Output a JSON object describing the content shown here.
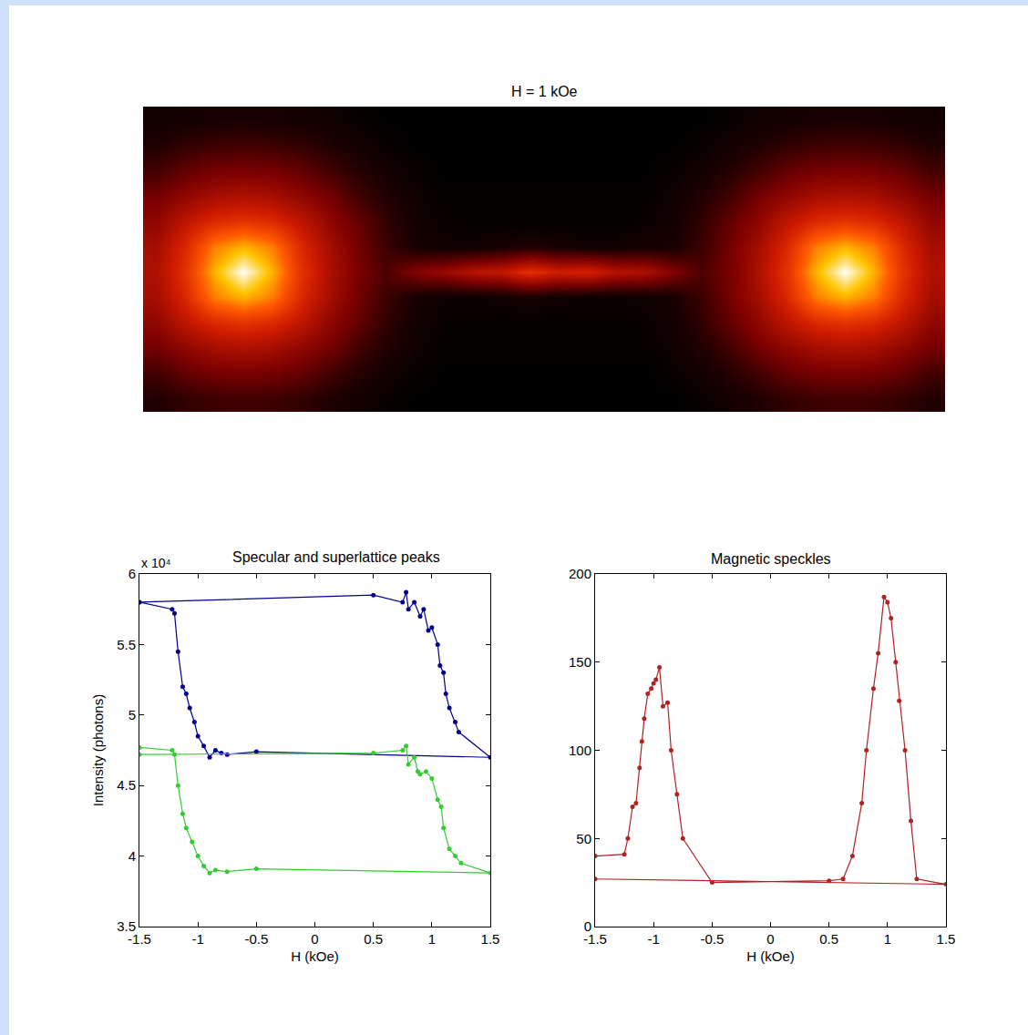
{
  "chart_data": [
    {
      "type": "heatmap",
      "title": "H = 1 kOe",
      "tick_labels": false,
      "z": [
        [
          8,
          9,
          10,
          10,
          10,
          9,
          8,
          6,
          4,
          4,
          4,
          4,
          4,
          4,
          4,
          4,
          4,
          4,
          4,
          4,
          6,
          8,
          9,
          10,
          10,
          10,
          9,
          8
        ],
        [
          12,
          15,
          17,
          18,
          17,
          15,
          12,
          9,
          6,
          4,
          4,
          4,
          4,
          4,
          4,
          4,
          4,
          4,
          4,
          6,
          9,
          12,
          15,
          17,
          18,
          17,
          15,
          12
        ],
        [
          18,
          24,
          27,
          28,
          27,
          24,
          18,
          13,
          9,
          6,
          4,
          4,
          4,
          4,
          4,
          4,
          4,
          4,
          6,
          9,
          13,
          18,
          24,
          27,
          28,
          27,
          24,
          18
        ],
        [
          27,
          33,
          38,
          40,
          38,
          33,
          27,
          18,
          12,
          8,
          5,
          5,
          5,
          5,
          5,
          5,
          5,
          5,
          8,
          12,
          18,
          27,
          33,
          38,
          40,
          38,
          33,
          27
        ],
        [
          33,
          44,
          52,
          55,
          52,
          44,
          33,
          24,
          15,
          9,
          6,
          5,
          5,
          5,
          5,
          5,
          5,
          6,
          9,
          15,
          24,
          33,
          44,
          52,
          55,
          52,
          44,
          33
        ],
        [
          38,
          52,
          72,
          80,
          72,
          52,
          38,
          27,
          17,
          10,
          8,
          8,
          10,
          12,
          10,
          8,
          8,
          10,
          10,
          17,
          27,
          38,
          52,
          72,
          80,
          72,
          52,
          38
        ],
        [
          40,
          55,
          80,
          100,
          80,
          55,
          40,
          28,
          20,
          30,
          35,
          42,
          45,
          55,
          48,
          50,
          42,
          40,
          30,
          20,
          28,
          40,
          55,
          80,
          100,
          80,
          55,
          40
        ],
        [
          38,
          52,
          72,
          80,
          72,
          52,
          38,
          27,
          17,
          10,
          7,
          7,
          8,
          10,
          8,
          7,
          7,
          8,
          10,
          17,
          27,
          38,
          52,
          72,
          80,
          72,
          52,
          38
        ],
        [
          33,
          44,
          52,
          55,
          52,
          44,
          33,
          24,
          15,
          9,
          6,
          5,
          5,
          5,
          5,
          5,
          5,
          6,
          9,
          15,
          24,
          33,
          44,
          52,
          55,
          52,
          44,
          33
        ],
        [
          27,
          33,
          38,
          40,
          38,
          33,
          27,
          18,
          12,
          8,
          5,
          5,
          5,
          5,
          5,
          5,
          5,
          5,
          8,
          12,
          18,
          27,
          33,
          38,
          40,
          38,
          33,
          27
        ],
        [
          18,
          24,
          27,
          28,
          27,
          24,
          18,
          13,
          9,
          6,
          4,
          4,
          4,
          4,
          4,
          4,
          4,
          4,
          6,
          9,
          13,
          18,
          24,
          27,
          28,
          27,
          24,
          18
        ],
        [
          12,
          15,
          17,
          18,
          17,
          15,
          12,
          9,
          6,
          4,
          4,
          4,
          4,
          4,
          4,
          4,
          4,
          4,
          4,
          6,
          9,
          12,
          15,
          17,
          18,
          17,
          15,
          12
        ]
      ]
    },
    {
      "type": "line",
      "title": "Specular and superlattice peaks",
      "xlabel": "H (kOe)",
      "ylabel": "Intensity (photons)",
      "annotations": [
        "x 10⁴"
      ],
      "xlim": [
        -1.5,
        1.5
      ],
      "ylim": [
        3.5,
        6
      ],
      "xticks": [
        -1.5,
        -1,
        -0.5,
        0,
        0.5,
        1,
        1.5
      ],
      "yticks": [
        3.5,
        4,
        4.5,
        5,
        5.5,
        6
      ],
      "grid": false,
      "marker": "circle",
      "line_style": "solid",
      "series": [
        {
          "color": "#00008b",
          "x": [
            -1.5,
            0.5,
            0.75,
            0.78,
            0.8,
            0.85,
            0.9,
            0.93,
            0.97,
            1.0,
            1.05,
            1.07,
            1.1,
            1.12,
            1.15,
            1.2,
            1.23,
            1.5,
            -0.5,
            -0.75,
            -0.8,
            -0.85,
            -0.9,
            -0.95,
            -1.0,
            -1.03,
            -1.07,
            -1.1,
            -1.13,
            -1.17,
            -1.2,
            -1.22,
            -1.5
          ],
          "values": [
            5.8,
            5.85,
            5.8,
            5.87,
            5.75,
            5.8,
            5.7,
            5.75,
            5.6,
            5.62,
            5.5,
            5.35,
            5.3,
            5.15,
            5.05,
            4.95,
            4.88,
            4.7,
            4.74,
            4.72,
            4.73,
            4.75,
            4.7,
            4.78,
            4.85,
            4.95,
            5.05,
            5.15,
            5.2,
            5.45,
            5.72,
            5.75,
            5.8
          ]
        },
        {
          "color": "#33cc33",
          "x": [
            -1.5,
            0.5,
            0.75,
            0.78,
            0.8,
            0.85,
            0.88,
            0.9,
            0.95,
            1.0,
            1.05,
            1.08,
            1.1,
            1.15,
            1.2,
            1.25,
            1.5,
            -0.5,
            -0.75,
            -0.85,
            -0.9,
            -0.95,
            -1.0,
            -1.05,
            -1.1,
            -1.13,
            -1.17,
            -1.2,
            -1.22,
            -1.5
          ],
          "values": [
            4.72,
            4.73,
            4.75,
            4.78,
            4.65,
            4.7,
            4.6,
            4.58,
            4.6,
            4.55,
            4.4,
            4.35,
            4.2,
            4.05,
            4.0,
            3.95,
            3.88,
            3.91,
            3.89,
            3.9,
            3.88,
            3.93,
            4.0,
            4.1,
            4.2,
            4.3,
            4.5,
            4.72,
            4.75,
            4.77
          ]
        }
      ]
    },
    {
      "type": "line",
      "title": "Magnetic speckles",
      "xlabel": "H (kOe)",
      "xlim": [
        -1.5,
        1.5
      ],
      "ylim": [
        0,
        200
      ],
      "xticks": [
        -1.5,
        -1,
        -0.5,
        0,
        0.5,
        1,
        1.5
      ],
      "yticks": [
        0,
        50,
        100,
        150,
        200
      ],
      "grid": false,
      "marker": "circle",
      "line_style": "solid",
      "series": [
        {
          "color": "#b22222",
          "x": [
            -1.5,
            -1.25,
            -1.22,
            -1.18,
            -1.15,
            -1.12,
            -1.1,
            -1.08,
            -1.05,
            -1.02,
            -1.0,
            -0.98,
            -0.95,
            -0.92,
            -0.88,
            -0.85,
            -0.8,
            -0.75,
            -0.5,
            0.5,
            0.62,
            0.7,
            0.78,
            0.82,
            0.88,
            0.92,
            0.97,
            1.0,
            1.03,
            1.07,
            1.1,
            1.15,
            1.2,
            1.25,
            1.5,
            -1.5
          ],
          "values": [
            40,
            41,
            50,
            68,
            70,
            90,
            105,
            118,
            132,
            135,
            138,
            140,
            147,
            125,
            127,
            100,
            75,
            50,
            25,
            26,
            27,
            40,
            70,
            100,
            135,
            155,
            187,
            184,
            175,
            150,
            128,
            100,
            60,
            27,
            24,
            27
          ]
        }
      ]
    }
  ]
}
